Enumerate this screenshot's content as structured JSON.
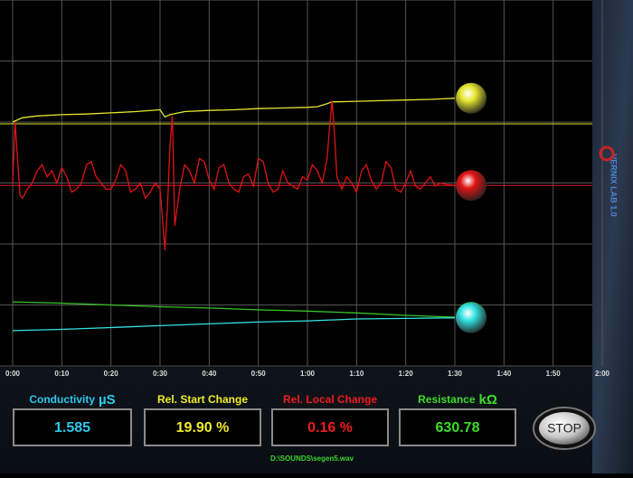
{
  "chart_data": {
    "type": "line",
    "xlim": [
      0,
      120
    ],
    "xticks": [
      {
        "value": 0,
        "label": "0:00"
      },
      {
        "value": 10,
        "label": "0:10"
      },
      {
        "value": 20,
        "label": "0:20"
      },
      {
        "value": 30,
        "label": "0:30"
      },
      {
        "value": 40,
        "label": "0:40"
      },
      {
        "value": 50,
        "label": "0:50"
      },
      {
        "value": 60,
        "label": "1:00"
      },
      {
        "value": 70,
        "label": "1:10"
      },
      {
        "value": 80,
        "label": "1:20"
      },
      {
        "value": 90,
        "label": "1:30"
      },
      {
        "value": 100,
        "label": "1:40"
      },
      {
        "value": 110,
        "label": "1:50"
      },
      {
        "value": 120,
        "label": "2:00"
      }
    ],
    "ylim": [
      0,
      6
    ],
    "yticks": [
      0,
      1,
      2,
      3,
      4,
      5,
      6
    ],
    "grid": true,
    "series": [
      {
        "color": "#e6e62e",
        "baseline": 3.97,
        "x": [
          0,
          2,
          5,
          10,
          15,
          20,
          25,
          30,
          31,
          32,
          35,
          40,
          45,
          50,
          55,
          60,
          62,
          64,
          65,
          66,
          70,
          75,
          80,
          85,
          90
        ],
        "values": [
          4.0,
          4.07,
          4.1,
          4.12,
          4.13,
          4.15,
          4.17,
          4.2,
          4.08,
          4.12,
          4.17,
          4.19,
          4.2,
          4.22,
          4.23,
          4.24,
          4.25,
          4.3,
          4.33,
          4.33,
          4.34,
          4.35,
          4.36,
          4.37,
          4.39
        ]
      },
      {
        "color": "#e01414",
        "baseline": 2.96,
        "x": [
          0,
          0.5,
          1,
          1.5,
          2,
          3,
          4,
          5,
          6,
          7,
          8,
          9,
          10,
          11,
          12,
          13,
          14,
          15,
          16,
          17,
          18,
          19,
          20,
          21,
          22,
          23,
          24,
          25,
          26,
          27,
          28,
          29,
          30,
          30.5,
          31,
          31.5,
          32,
          32.5,
          33,
          34,
          35,
          36,
          37,
          38,
          39,
          40,
          41,
          42,
          43,
          44,
          45,
          46,
          47,
          48,
          49,
          50,
          51,
          52,
          53,
          54,
          55,
          56,
          57,
          58,
          59,
          60,
          61,
          62,
          63,
          64,
          64.5,
          65,
          65.5,
          66,
          67,
          68,
          69,
          70,
          71,
          72,
          73,
          74,
          75,
          76,
          77,
          78,
          79,
          80,
          81,
          82,
          83,
          84,
          85,
          86,
          87,
          88,
          89,
          90
        ],
        "values": [
          3.0,
          4.0,
          3.4,
          2.8,
          2.75,
          2.9,
          3.0,
          3.2,
          3.3,
          3.1,
          3.2,
          3.0,
          3.25,
          3.1,
          2.85,
          2.9,
          3.0,
          3.3,
          3.35,
          3.1,
          3.0,
          2.9,
          2.9,
          3.05,
          3.3,
          3.2,
          2.85,
          2.9,
          3.0,
          2.75,
          2.85,
          3.0,
          2.9,
          2.4,
          1.9,
          2.6,
          3.6,
          4.1,
          2.3,
          2.9,
          3.3,
          3.2,
          3.0,
          3.4,
          3.35,
          3.05,
          2.9,
          3.25,
          3.3,
          3.0,
          2.9,
          2.85,
          3.1,
          3.15,
          2.95,
          3.4,
          3.35,
          3.0,
          2.85,
          2.9,
          3.2,
          3.0,
          2.95,
          2.9,
          3.1,
          3.05,
          3.3,
          3.2,
          3.0,
          3.4,
          3.9,
          4.35,
          3.8,
          3.1,
          2.9,
          3.1,
          3.0,
          2.85,
          3.2,
          3.3,
          3.05,
          2.9,
          3.0,
          3.35,
          3.25,
          2.9,
          2.85,
          3.0,
          3.2,
          2.95,
          2.9,
          3.0,
          3.1,
          2.95,
          3.0,
          2.98,
          2.97,
          2.96
        ]
      },
      {
        "color": "#35c423",
        "x": [
          0,
          10,
          20,
          30,
          40,
          50,
          60,
          70,
          80,
          90
        ],
        "values": [
          1.05,
          1.03,
          1.0,
          0.97,
          0.95,
          0.92,
          0.9,
          0.87,
          0.83,
          0.8
        ]
      },
      {
        "color": "#33e3e3",
        "x": [
          0,
          10,
          20,
          30,
          40,
          50,
          60,
          70,
          80,
          90
        ],
        "values": [
          0.58,
          0.6,
          0.63,
          0.66,
          0.69,
          0.72,
          0.74,
          0.77,
          0.78,
          0.79
        ]
      }
    ]
  },
  "readouts": [
    {
      "label": "Conductivity",
      "unit": "µS",
      "value": "1.585",
      "color": "#2ec8ec"
    },
    {
      "label": "Rel. Start Change",
      "value": "19.90 %",
      "color": "#f0ec2a"
    },
    {
      "label": "Rel. Local Change",
      "value": "0.16 %",
      "color": "#ee1c1c"
    },
    {
      "label": "Resistance",
      "unit": "kΩ",
      "value": "630.78",
      "color": "#3edc2a"
    }
  ],
  "stop_button": "STOP",
  "file": "D:\\SOUNDS\\segen5.wav",
  "logo": "VERNIX LAB 1.0"
}
